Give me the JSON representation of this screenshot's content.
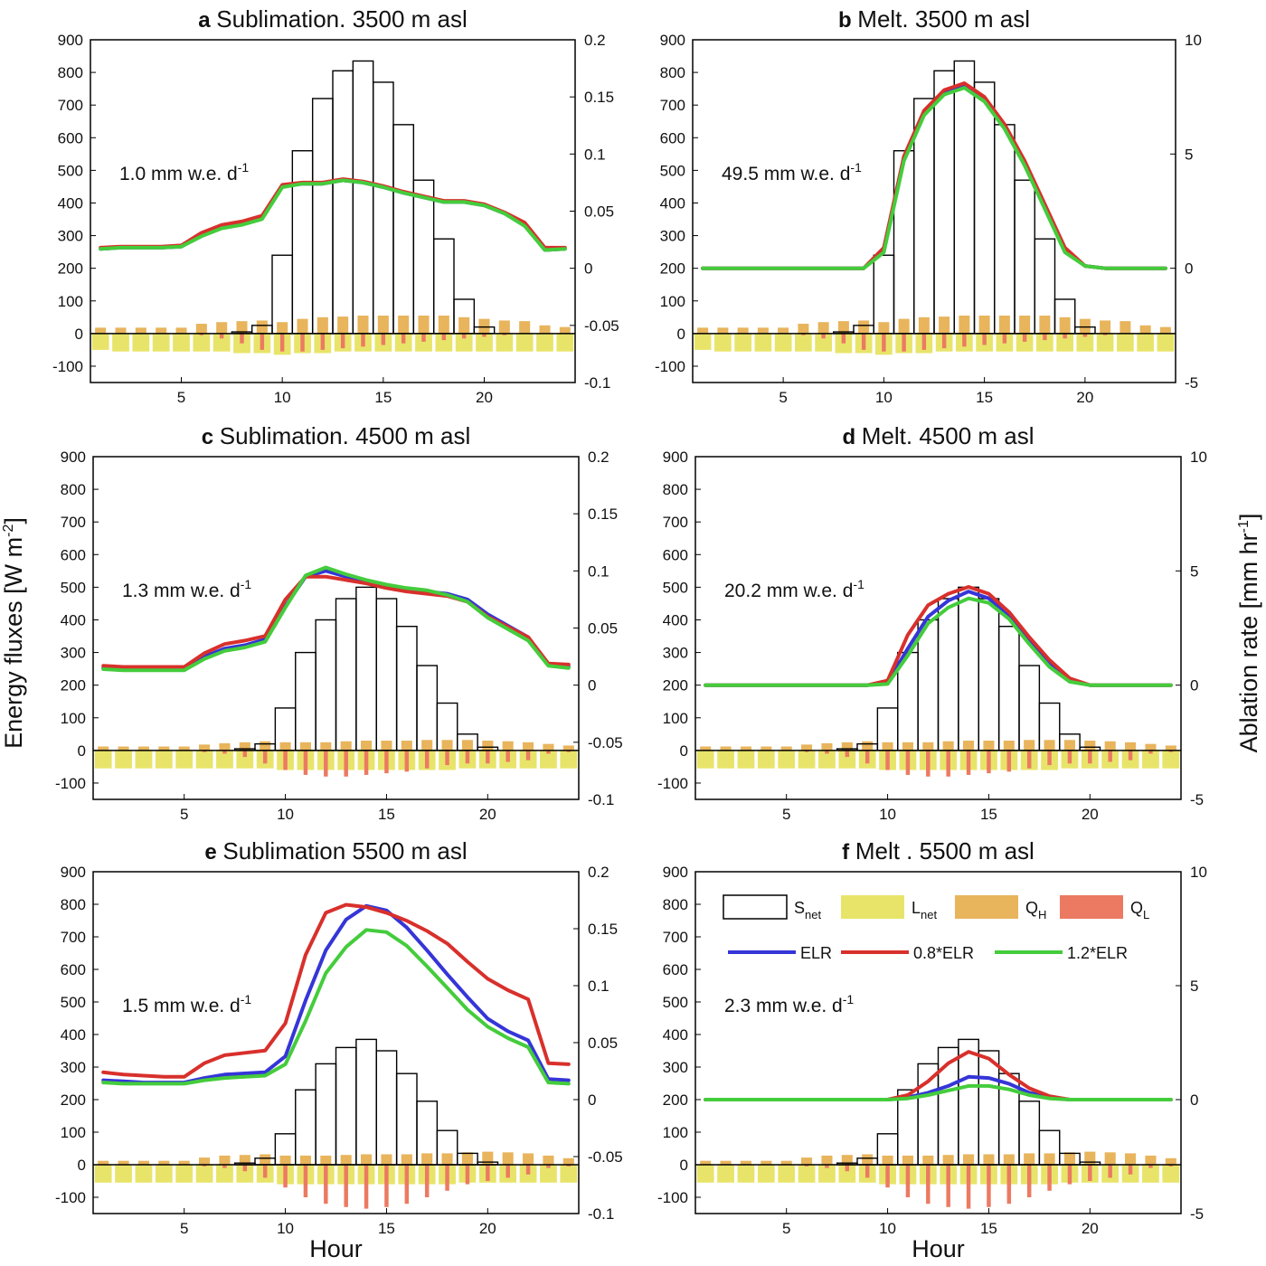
{
  "figure": {
    "xlabel": "Hour",
    "ylabel_left": "Energy fluxes [W m",
    "ylabel_left_sup": "-2",
    "ylabel_left_end": "]",
    "ylabel_right": "Ablation rate [mm hr",
    "ylabel_right_sup": "-1",
    "ylabel_right_end": "]"
  },
  "legend": {
    "snet": "S",
    "snet_sub": "net",
    "lnet": "L",
    "lnet_sub": "net",
    "qh": "Q",
    "qh_sub": "H",
    "ql": "Q",
    "ql_sub": "L",
    "elr": "ELR",
    "elr08": "0.8*ELR",
    "elr12": "1.2*ELR"
  },
  "colors": {
    "elr": "#3535d8",
    "elr08": "#d8302c",
    "elr12": "#44cc3c",
    "lnet": "#e8e46a",
    "qh": "#e8b45c",
    "ql": "#ec7a62",
    "snet_edge": "#000000"
  },
  "chart_data": [
    {
      "type": "bar+line",
      "letter": "a",
      "title": "Sublimation. 3500 m asl",
      "annotation": "1.0 mm w.e. d",
      "annotation_sup": "-1",
      "xlabel": "",
      "xlim": [
        0.5,
        24.5
      ],
      "xticks": [
        5,
        10,
        15,
        20
      ],
      "ylim": [
        -150,
        900
      ],
      "yticks": [
        -100,
        0,
        100,
        200,
        300,
        400,
        500,
        600,
        700,
        800,
        900
      ],
      "y2lim": [
        -0.1,
        0.2
      ],
      "y2ticks": [
        "-0.1",
        "-0.05",
        "0",
        "0.05",
        "0.1",
        "0.15",
        "0.2"
      ],
      "snet": [
        0,
        0,
        0,
        0,
        0,
        0,
        0,
        5,
        25,
        240,
        560,
        720,
        805,
        835,
        770,
        640,
        470,
        290,
        105,
        20,
        0,
        0,
        0,
        0
      ],
      "lnet": [
        -50,
        -55,
        -55,
        -55,
        -55,
        -55,
        -55,
        -60,
        -60,
        -65,
        -60,
        -60,
        -55,
        -55,
        -55,
        -55,
        -55,
        -55,
        -55,
        -55,
        -55,
        -55,
        -55,
        -55
      ],
      "qh": [
        18,
        18,
        18,
        18,
        18,
        30,
        35,
        38,
        40,
        35,
        45,
        50,
        52,
        55,
        55,
        55,
        55,
        55,
        50,
        45,
        40,
        38,
        25,
        20
      ],
      "ql": [
        0,
        0,
        0,
        0,
        0,
        -5,
        -15,
        -30,
        -50,
        -55,
        -55,
        -50,
        -45,
        -40,
        -35,
        -30,
        -25,
        -20,
        -15,
        -10,
        -5,
        0,
        0,
        0
      ],
      "elr": [
        0.017,
        0.018,
        0.018,
        0.018,
        0.019,
        0.029,
        0.036,
        0.039,
        0.044,
        0.072,
        0.074,
        0.074,
        0.077,
        0.075,
        0.071,
        0.066,
        0.062,
        0.058,
        0.058,
        0.055,
        0.048,
        0.038,
        0.016,
        0.017
      ],
      "elr08": [
        0.018,
        0.019,
        0.019,
        0.019,
        0.02,
        0.031,
        0.038,
        0.041,
        0.046,
        0.073,
        0.075,
        0.075,
        0.078,
        0.076,
        0.072,
        0.067,
        0.063,
        0.059,
        0.059,
        0.056,
        0.049,
        0.04,
        0.018,
        0.018
      ],
      "elr12": [
        0.017,
        0.018,
        0.018,
        0.018,
        0.019,
        0.028,
        0.035,
        0.038,
        0.043,
        0.071,
        0.074,
        0.074,
        0.077,
        0.075,
        0.071,
        0.066,
        0.062,
        0.058,
        0.058,
        0.055,
        0.048,
        0.037,
        0.016,
        0.017
      ]
    },
    {
      "type": "bar+line",
      "letter": "b",
      "title": "Melt. 3500 m asl",
      "annotation": "49.5 mm w.e. d",
      "annotation_sup": "-1",
      "xlabel": "",
      "xlim": [
        0.5,
        24.5
      ],
      "xticks": [
        5,
        10,
        15,
        20
      ],
      "ylim": [
        -150,
        900
      ],
      "yticks": [
        -100,
        0,
        100,
        200,
        300,
        400,
        500,
        600,
        700,
        800,
        900
      ],
      "y2lim": [
        -5,
        10
      ],
      "y2ticks": [
        "-5",
        "0",
        "5",
        "10"
      ],
      "snet": [
        0,
        0,
        0,
        0,
        0,
        0,
        0,
        5,
        25,
        240,
        560,
        720,
        805,
        835,
        770,
        640,
        470,
        290,
        105,
        20,
        0,
        0,
        0,
        0
      ],
      "lnet": [
        -50,
        -55,
        -55,
        -55,
        -55,
        -55,
        -55,
        -60,
        -60,
        -65,
        -60,
        -60,
        -55,
        -55,
        -55,
        -55,
        -55,
        -55,
        -55,
        -55,
        -55,
        -55,
        -55,
        -55
      ],
      "qh": [
        18,
        18,
        18,
        18,
        18,
        30,
        35,
        38,
        40,
        35,
        45,
        50,
        52,
        55,
        55,
        55,
        55,
        55,
        50,
        45,
        40,
        38,
        25,
        20
      ],
      "ql": [
        0,
        0,
        0,
        0,
        0,
        -5,
        -15,
        -30,
        -50,
        -55,
        -55,
        -50,
        -45,
        -40,
        -35,
        -30,
        -25,
        -20,
        -15,
        -10,
        -5,
        0,
        0,
        0
      ],
      "elr": [
        0,
        0,
        0,
        0,
        0,
        0,
        0,
        0,
        0,
        0.8,
        4.8,
        6.8,
        7.7,
        8.0,
        7.4,
        6.2,
        4.6,
        2.7,
        0.8,
        0.1,
        0,
        0,
        0,
        0
      ],
      "elr08": [
        0,
        0,
        0,
        0,
        0,
        0,
        0,
        0,
        0,
        0.9,
        4.9,
        6.9,
        7.8,
        8.1,
        7.5,
        6.3,
        4.7,
        2.8,
        0.9,
        0.1,
        0,
        0,
        0,
        0
      ],
      "elr12": [
        0,
        0,
        0,
        0,
        0,
        0,
        0,
        0,
        0,
        0.7,
        4.7,
        6.7,
        7.6,
        7.9,
        7.3,
        6.1,
        4.5,
        2.6,
        0.7,
        0.1,
        0,
        0,
        0,
        0
      ]
    },
    {
      "type": "bar+line",
      "letter": "c",
      "title": "Sublimation. 4500 m asl",
      "annotation": "1.3 mm w.e. d",
      "annotation_sup": "-1",
      "xlabel": "",
      "xlim": [
        0.5,
        24.5
      ],
      "xticks": [
        5,
        10,
        15,
        20
      ],
      "ylim": [
        -150,
        900
      ],
      "yticks": [
        -100,
        0,
        100,
        200,
        300,
        400,
        500,
        600,
        700,
        800,
        900
      ],
      "y2lim": [
        -0.1,
        0.2
      ],
      "y2ticks": [
        "-0.1",
        "-0.05",
        "0",
        "0.05",
        "0.1",
        "0.15",
        "0.2"
      ],
      "snet": [
        0,
        0,
        0,
        0,
        0,
        0,
        0,
        5,
        20,
        130,
        300,
        400,
        465,
        500,
        465,
        380,
        260,
        145,
        50,
        10,
        0,
        0,
        0,
        0
      ],
      "lnet": [
        -55,
        -55,
        -55,
        -55,
        -55,
        -55,
        -55,
        -55,
        -55,
        -60,
        -60,
        -60,
        -60,
        -60,
        -60,
        -60,
        -60,
        -60,
        -55,
        -55,
        -55,
        -55,
        -55,
        -55
      ],
      "qh": [
        12,
        12,
        12,
        12,
        12,
        18,
        22,
        25,
        28,
        25,
        25,
        25,
        28,
        30,
        30,
        30,
        32,
        32,
        32,
        30,
        28,
        25,
        20,
        15
      ],
      "ql": [
        0,
        0,
        0,
        0,
        0,
        -5,
        -10,
        -20,
        -40,
        -60,
        -75,
        -80,
        -80,
        -75,
        -70,
        -65,
        -55,
        -45,
        -40,
        -40,
        -35,
        -30,
        -10,
        -5
      ],
      "elr": [
        0.015,
        0.014,
        0.014,
        0.014,
        0.014,
        0.025,
        0.032,
        0.035,
        0.04,
        0.069,
        0.095,
        0.1,
        0.095,
        0.091,
        0.087,
        0.084,
        0.082,
        0.08,
        0.075,
        0.062,
        0.052,
        0.042,
        0.018,
        0.016
      ],
      "elr08": [
        0.017,
        0.016,
        0.016,
        0.016,
        0.016,
        0.028,
        0.036,
        0.039,
        0.043,
        0.075,
        0.095,
        0.095,
        0.092,
        0.089,
        0.085,
        0.082,
        0.08,
        0.078,
        0.073,
        0.06,
        0.051,
        0.042,
        0.019,
        0.018
      ],
      "elr12": [
        0.014,
        0.013,
        0.013,
        0.013,
        0.013,
        0.023,
        0.03,
        0.033,
        0.038,
        0.068,
        0.096,
        0.103,
        0.097,
        0.092,
        0.088,
        0.085,
        0.083,
        0.079,
        0.073,
        0.059,
        0.049,
        0.039,
        0.017,
        0.015
      ]
    },
    {
      "type": "bar+line",
      "letter": "d",
      "title": "Melt. 4500 m asl",
      "annotation": "20.2 mm w.e. d",
      "annotation_sup": "-1",
      "xlabel": "",
      "xlim": [
        0.5,
        24.5
      ],
      "xticks": [
        5,
        10,
        15,
        20
      ],
      "ylim": [
        -150,
        900
      ],
      "yticks": [
        -100,
        0,
        100,
        200,
        300,
        400,
        500,
        600,
        700,
        800,
        900
      ],
      "y2lim": [
        -5,
        10
      ],
      "y2ticks": [
        "-5",
        "0",
        "5",
        "10"
      ],
      "snet": [
        0,
        0,
        0,
        0,
        0,
        0,
        0,
        5,
        20,
        130,
        300,
        400,
        465,
        500,
        465,
        380,
        260,
        145,
        50,
        10,
        0,
        0,
        0,
        0
      ],
      "lnet": [
        -55,
        -55,
        -55,
        -55,
        -55,
        -55,
        -55,
        -55,
        -55,
        -60,
        -60,
        -60,
        -60,
        -60,
        -60,
        -60,
        -60,
        -60,
        -55,
        -55,
        -55,
        -55,
        -55,
        -55
      ],
      "qh": [
        12,
        12,
        12,
        12,
        12,
        18,
        22,
        25,
        28,
        25,
        25,
        25,
        28,
        30,
        30,
        30,
        32,
        32,
        32,
        30,
        28,
        25,
        20,
        15
      ],
      "ql": [
        0,
        0,
        0,
        0,
        0,
        -5,
        -10,
        -20,
        -40,
        -60,
        -75,
        -80,
        -80,
        -75,
        -70,
        -65,
        -55,
        -45,
        -40,
        -40,
        -35,
        -30,
        -10,
        -5
      ],
      "elr": [
        0,
        0,
        0,
        0,
        0,
        0,
        0,
        0,
        0,
        0.1,
        1.6,
        3.0,
        3.7,
        4.1,
        3.8,
        3.0,
        1.9,
        0.9,
        0.2,
        0,
        0,
        0,
        0,
        0
      ],
      "elr08": [
        0,
        0,
        0,
        0,
        0,
        0,
        0,
        0,
        0,
        0.2,
        2.2,
        3.5,
        4.0,
        4.3,
        4.0,
        3.2,
        2.1,
        1.1,
        0.3,
        0,
        0,
        0,
        0,
        0
      ],
      "elr12": [
        0,
        0,
        0,
        0,
        0,
        0,
        0,
        0,
        0,
        0.05,
        1.3,
        2.7,
        3.4,
        3.8,
        3.6,
        2.9,
        1.8,
        0.8,
        0.15,
        0,
        0,
        0,
        0,
        0
      ]
    },
    {
      "type": "bar+line",
      "letter": "e",
      "title": "Sublimation 5500 m asl",
      "annotation": "1.5 mm w.e. d",
      "annotation_sup": "-1",
      "xlabel": "Hour",
      "xlim": [
        0.5,
        24.5
      ],
      "xticks": [
        5,
        10,
        15,
        20
      ],
      "ylim": [
        -150,
        900
      ],
      "yticks": [
        -100,
        0,
        100,
        200,
        300,
        400,
        500,
        600,
        700,
        800,
        900
      ],
      "y2lim": [
        -0.1,
        0.2
      ],
      "y2ticks": [
        "-0.1",
        "-0.05",
        "0",
        "0.05",
        "0.1",
        "0.15",
        "0.2"
      ],
      "snet": [
        0,
        0,
        0,
        0,
        0,
        0,
        0,
        5,
        20,
        95,
        230,
        310,
        360,
        385,
        350,
        280,
        195,
        105,
        35,
        8,
        0,
        0,
        0,
        0
      ],
      "lnet": [
        -55,
        -55,
        -55,
        -55,
        -55,
        -55,
        -55,
        -55,
        -55,
        -60,
        -60,
        -60,
        -60,
        -60,
        -60,
        -60,
        -60,
        -60,
        -55,
        -55,
        -55,
        -55,
        -55,
        -55
      ],
      "qh": [
        12,
        12,
        12,
        12,
        12,
        22,
        28,
        30,
        32,
        28,
        28,
        28,
        30,
        32,
        32,
        32,
        35,
        35,
        38,
        40,
        38,
        35,
        28,
        20
      ],
      "ql": [
        0,
        0,
        0,
        0,
        0,
        -5,
        -10,
        -20,
        -40,
        -70,
        -100,
        -120,
        -130,
        -135,
        -130,
        -120,
        -100,
        -80,
        -60,
        -50,
        -40,
        -30,
        -10,
        -5
      ],
      "elr": [
        0.017,
        0.016,
        0.015,
        0.015,
        0.015,
        0.019,
        0.022,
        0.023,
        0.024,
        0.038,
        0.087,
        0.131,
        0.158,
        0.17,
        0.166,
        0.151,
        0.131,
        0.11,
        0.09,
        0.071,
        0.06,
        0.052,
        0.018,
        0.017
      ],
      "elr08": [
        0.024,
        0.022,
        0.021,
        0.02,
        0.02,
        0.032,
        0.039,
        0.041,
        0.043,
        0.067,
        0.127,
        0.164,
        0.171,
        0.169,
        0.164,
        0.157,
        0.148,
        0.137,
        0.121,
        0.106,
        0.096,
        0.088,
        0.032,
        0.031
      ],
      "elr12": [
        0.015,
        0.014,
        0.014,
        0.014,
        0.014,
        0.017,
        0.019,
        0.02,
        0.021,
        0.031,
        0.069,
        0.111,
        0.134,
        0.149,
        0.147,
        0.135,
        0.117,
        0.098,
        0.079,
        0.064,
        0.054,
        0.046,
        0.015,
        0.014
      ]
    },
    {
      "type": "bar+line",
      "letter": "f",
      "title": "Melt . 5500 m asl",
      "annotation": "2.3 mm w.e. d",
      "annotation_sup": "-1",
      "xlabel": "Hour",
      "xlim": [
        0.5,
        24.5
      ],
      "xticks": [
        5,
        10,
        15,
        20
      ],
      "ylim": [
        -150,
        900
      ],
      "yticks": [
        -100,
        0,
        100,
        200,
        300,
        400,
        500,
        600,
        700,
        800,
        900
      ],
      "y2lim": [
        -5,
        10
      ],
      "y2ticks": [
        "-5",
        "0",
        "5",
        "10"
      ],
      "snet": [
        0,
        0,
        0,
        0,
        0,
        0,
        0,
        5,
        20,
        95,
        230,
        310,
        360,
        385,
        350,
        280,
        195,
        105,
        35,
        8,
        0,
        0,
        0,
        0
      ],
      "lnet": [
        -55,
        -55,
        -55,
        -55,
        -55,
        -55,
        -55,
        -55,
        -55,
        -60,
        -60,
        -60,
        -60,
        -60,
        -60,
        -60,
        -60,
        -60,
        -55,
        -55,
        -55,
        -55,
        -55,
        -55
      ],
      "qh": [
        12,
        12,
        12,
        12,
        12,
        22,
        28,
        30,
        32,
        28,
        28,
        28,
        30,
        32,
        32,
        32,
        35,
        35,
        38,
        40,
        38,
        35,
        28,
        20
      ],
      "ql": [
        0,
        0,
        0,
        0,
        0,
        -5,
        -10,
        -20,
        -40,
        -70,
        -100,
        -120,
        -130,
        -135,
        -130,
        -120,
        -100,
        -80,
        -60,
        -50,
        -40,
        -30,
        -10,
        -5
      ],
      "elr": [
        0,
        0,
        0,
        0,
        0,
        0,
        0,
        0,
        0,
        0,
        0.1,
        0.3,
        0.6,
        1.0,
        0.95,
        0.7,
        0.3,
        0.1,
        0,
        0,
        0,
        0,
        0,
        0
      ],
      "elr08": [
        0,
        0,
        0,
        0,
        0,
        0,
        0,
        0,
        0,
        0,
        0.2,
        0.8,
        1.6,
        2.1,
        1.8,
        1.1,
        0.5,
        0.15,
        0,
        0,
        0,
        0,
        0,
        0
      ],
      "elr12": [
        0,
        0,
        0,
        0,
        0,
        0,
        0,
        0,
        0,
        0,
        0.05,
        0.2,
        0.4,
        0.6,
        0.6,
        0.45,
        0.2,
        0.05,
        0,
        0,
        0,
        0,
        0,
        0
      ]
    }
  ]
}
